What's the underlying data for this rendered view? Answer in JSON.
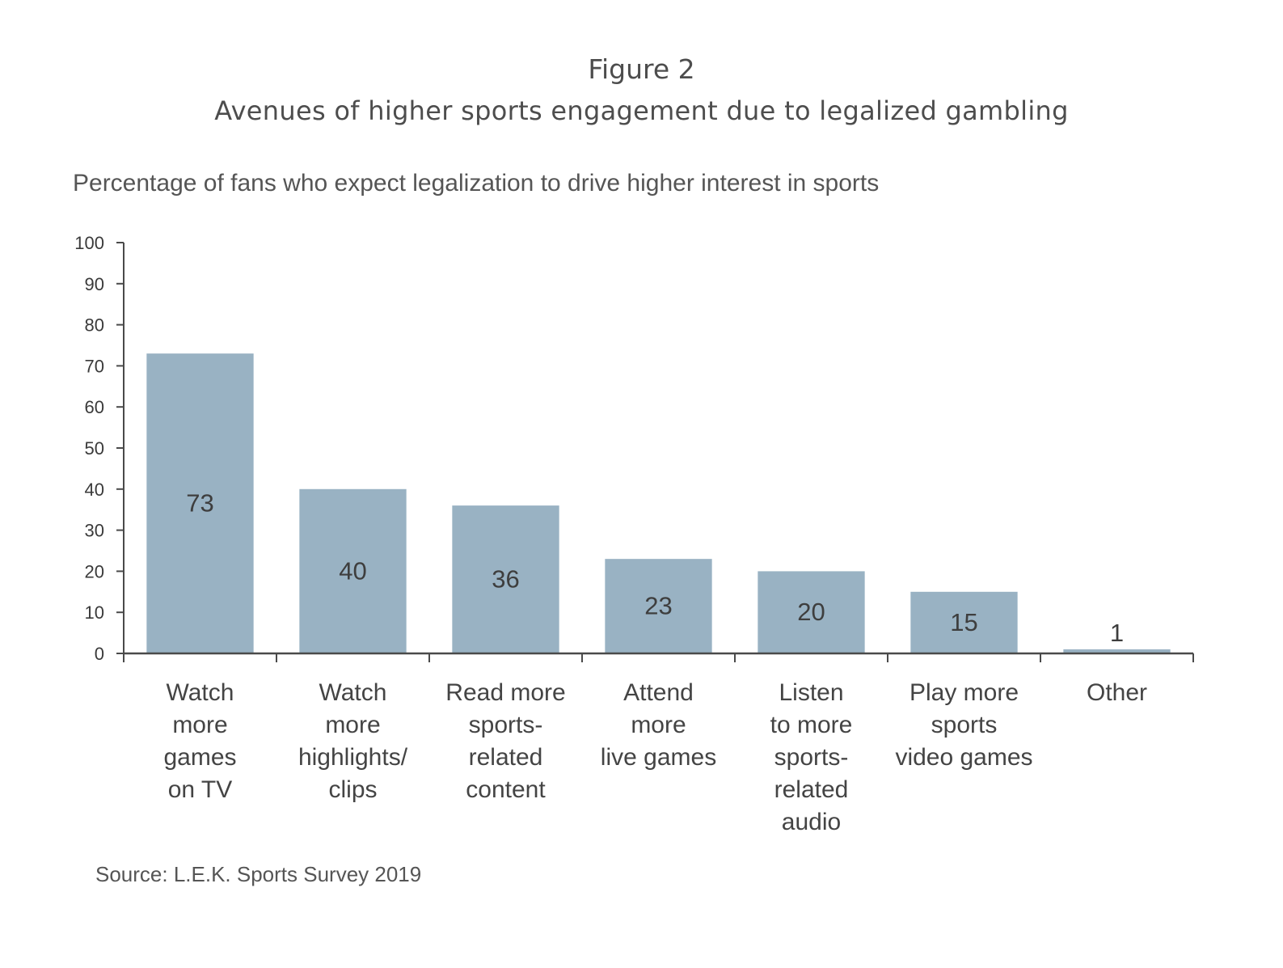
{
  "figure_label": "Figure 2",
  "title": "Avenues of higher sports engagement due to legalized gambling",
  "subtitle": "Percentage of fans who expect legalization to drive higher interest in sports",
  "source": "Source: L.E.K. Sports Survey 2019",
  "chart_data": {
    "type": "bar",
    "categories": [
      [
        "Watch",
        "more",
        "games",
        "on TV"
      ],
      [
        "Watch",
        "more",
        "highlights/",
        "clips"
      ],
      [
        "Read more",
        "sports-",
        "related",
        "content"
      ],
      [
        "Attend",
        "more",
        "live games"
      ],
      [
        "Listen",
        "to more",
        "sports-",
        "related",
        "audio"
      ],
      [
        "Play more",
        "sports",
        "video games"
      ],
      [
        "Other"
      ]
    ],
    "values": [
      73,
      40,
      36,
      23,
      20,
      15,
      1
    ],
    "ylim": [
      0,
      100
    ],
    "yticks": [
      0,
      10,
      20,
      30,
      40,
      50,
      60,
      70,
      80,
      90,
      100
    ],
    "xlabel": "",
    "ylabel": "",
    "legend": "none",
    "grid": false,
    "bar_color": "#99b2c3",
    "axis_color": "#4a4a4a"
  }
}
